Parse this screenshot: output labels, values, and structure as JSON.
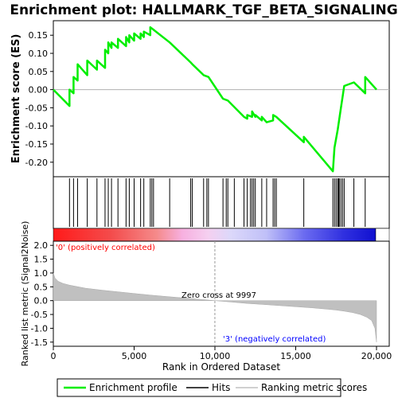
{
  "chart_data": {
    "type": "line",
    "title": "Enrichment plot: HALLMARK_TGF_BETA_SIGNALING",
    "panels": {
      "enrichment": {
        "ylabel": "Enrichment score (ES)",
        "ylim": [
          -0.24,
          0.19
        ],
        "yticks": [
          "0.15",
          "0.10",
          "0.05",
          "0.00",
          "-0.05",
          "-0.10",
          "-0.15",
          "-0.20"
        ],
        "ytick_values": [
          0.15,
          0.1,
          0.05,
          0.0,
          -0.05,
          -0.1,
          -0.15,
          -0.2
        ]
      },
      "metric": {
        "ylabel": "Ranked list metric (Signal2Noise)",
        "ylim": [
          -1.65,
          2.15
        ],
        "yticks": [
          "2.0",
          "1.5",
          "1.0",
          "0.5",
          "0.0",
          "-0.5",
          "-1.0",
          "-1.5"
        ],
        "ytick_values": [
          2.0,
          1.5,
          1.0,
          0.5,
          0.0,
          -0.5,
          -1.0,
          -1.5
        ]
      }
    },
    "xlabel": "Rank in Ordered Dataset",
    "xlim": [
      0,
      20000
    ],
    "xticks": [
      "0",
      "5,000",
      "10,000",
      "15,000",
      "20,000"
    ],
    "xtick_values": [
      0,
      5000,
      10000,
      15000,
      20000
    ],
    "annotations": {
      "positive": "'0' (positively correlated)",
      "negative": "'3' (negatively correlated)",
      "zero_cross": "Zero cross at 9997",
      "zero_cross_rank": 9997
    },
    "legend": {
      "placement": "bottom",
      "items": [
        "Enrichment profile",
        "Hits",
        "Ranking metric scores"
      ]
    },
    "colors": {
      "enrichment": "#00ee00",
      "hits": "#000000",
      "metric_fill": "#c0c0c0",
      "positive": "#ff0000",
      "negative": "#0000ff",
      "positive_label": "#ff0000",
      "negative_label": "#0000ff"
    },
    "es_profile": {
      "x": [
        0,
        1000,
        1000,
        1250,
        1250,
        1500,
        1500,
        2100,
        2100,
        2700,
        2700,
        3200,
        3200,
        3400,
        3400,
        3600,
        3600,
        4000,
        4000,
        4500,
        4500,
        4700,
        4700,
        5000,
        5000,
        5400,
        5400,
        5600,
        5600,
        6000,
        6000,
        6200,
        6200,
        7200,
        8500,
        8600,
        9300,
        9600,
        10500,
        10800,
        11800,
        12000,
        12000,
        12300,
        12300,
        12500,
        12500,
        12900,
        12900,
        13200,
        13600,
        13600,
        13800,
        15500,
        15500,
        17300,
        17400,
        17600,
        17700,
        17800,
        17900,
        18000,
        18600,
        19300,
        19300,
        20000
      ],
      "y": [
        0.0,
        -0.045,
        0.0,
        -0.01,
        0.035,
        0.025,
        0.07,
        0.04,
        0.08,
        0.055,
        0.08,
        0.06,
        0.11,
        0.1,
        0.13,
        0.115,
        0.13,
        0.115,
        0.14,
        0.12,
        0.145,
        0.13,
        0.15,
        0.135,
        0.155,
        0.14,
        0.155,
        0.145,
        0.16,
        0.15,
        0.172,
        0.165,
        0.165,
        0.13,
        0.075,
        0.07,
        0.04,
        0.035,
        -0.025,
        -0.03,
        -0.075,
        -0.08,
        -0.07,
        -0.075,
        -0.06,
        -0.075,
        -0.07,
        -0.085,
        -0.075,
        -0.09,
        -0.085,
        -0.07,
        -0.075,
        -0.145,
        -0.13,
        -0.225,
        -0.16,
        -0.11,
        -0.08,
        -0.05,
        -0.02,
        0.01,
        0.02,
        -0.01,
        0.035,
        0.0
      ]
    },
    "hits": [
      1000,
      1250,
      1500,
      2100,
      2700,
      3200,
      3400,
      3600,
      4000,
      4500,
      4700,
      5000,
      5400,
      5600,
      6000,
      6100,
      6200,
      7200,
      8500,
      8600,
      9300,
      9500,
      9600,
      10500,
      10700,
      10800,
      11200,
      11800,
      12000,
      12200,
      12300,
      12400,
      12500,
      12900,
      13200,
      13600,
      13700,
      13800,
      15500,
      17300,
      17400,
      17500,
      17600,
      17650,
      17700,
      17800,
      17900,
      18000,
      18600,
      19300
    ],
    "metric_curve": {
      "x": [
        0,
        100,
        300,
        600,
        1000,
        2000,
        3000,
        4000,
        5000,
        6000,
        7000,
        8000,
        9000,
        9997,
        11000,
        12000,
        13000,
        14000,
        15000,
        16000,
        17000,
        17500,
        18000,
        18500,
        19000,
        19400,
        19700,
        19900,
        20000
      ],
      "y": [
        1.0,
        0.82,
        0.7,
        0.62,
        0.56,
        0.45,
        0.38,
        0.32,
        0.26,
        0.2,
        0.15,
        0.1,
        0.05,
        0.0,
        -0.05,
        -0.1,
        -0.14,
        -0.18,
        -0.22,
        -0.26,
        -0.31,
        -0.34,
        -0.38,
        -0.43,
        -0.5,
        -0.6,
        -0.72,
        -1.0,
        -1.5
      ]
    }
  }
}
